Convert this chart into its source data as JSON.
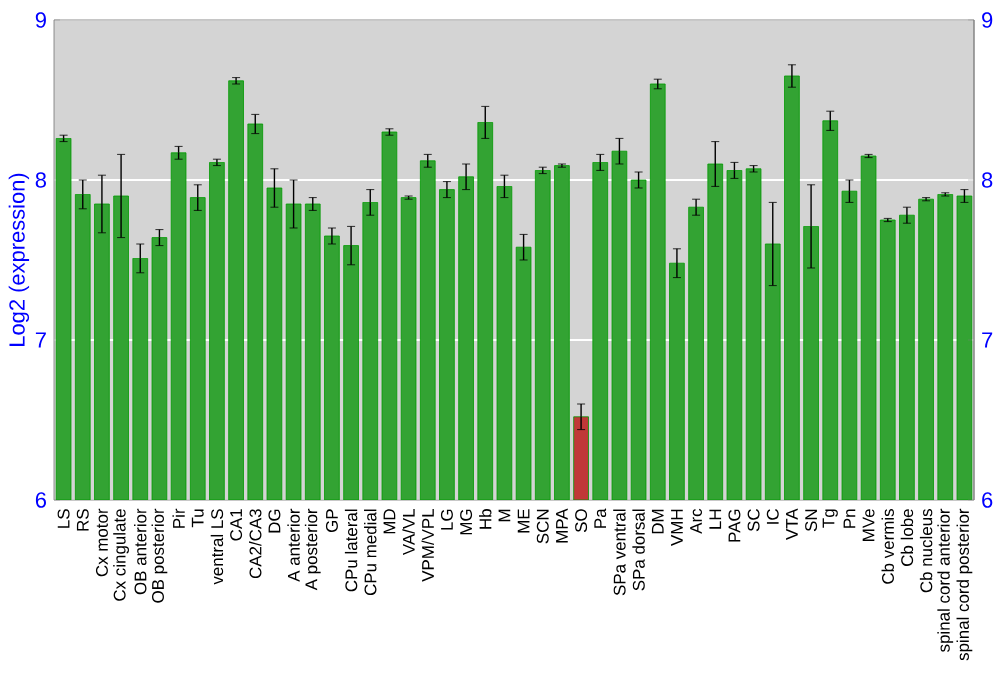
{
  "chart_data": {
    "type": "bar",
    "ylabel": "Log2 (expression)",
    "categories": [
      "LS",
      "RS",
      "Cx motor",
      "Cx cingulate",
      "OB anterior",
      "OB posterior",
      "Pir",
      "Tu",
      "ventral LS",
      "CA1",
      "CA2/CA3",
      "DG",
      "A anterior",
      "A posterior",
      "GP",
      "CPu lateral",
      "CPu medial",
      "MD",
      "VA/VL",
      "VPM/VPL",
      "LG",
      "MG",
      "Hb",
      "M",
      "ME",
      "SCN",
      "MPA",
      "SO",
      "Pa",
      "SPa ventral",
      "SPa dorsal",
      "DM",
      "VMH",
      "Arc",
      "LH",
      "PAG",
      "SC",
      "IC",
      "VTA",
      "SN",
      "Tg",
      "Pn",
      "MVe",
      "Cb vermis",
      "Cb lobe",
      "Cb nucleus",
      "spinal cord anterior",
      "spinal cord posterior"
    ],
    "values": [
      8.26,
      7.91,
      7.85,
      7.9,
      7.51,
      7.64,
      8.17,
      7.89,
      8.11,
      8.62,
      8.35,
      7.95,
      7.85,
      7.85,
      7.65,
      7.59,
      7.86,
      8.3,
      7.89,
      8.12,
      7.94,
      8.02,
      8.36,
      7.96,
      7.58,
      8.06,
      8.09,
      6.52,
      8.11,
      8.18,
      8.0,
      8.6,
      7.48,
      7.83,
      8.1,
      8.06,
      8.07,
      7.6,
      8.65,
      7.71,
      8.37,
      7.93,
      8.15,
      7.75,
      7.78,
      7.88,
      7.91,
      7.9
    ],
    "errors": [
      0.02,
      0.09,
      0.18,
      0.26,
      0.09,
      0.05,
      0.04,
      0.08,
      0.02,
      0.02,
      0.06,
      0.12,
      0.15,
      0.04,
      0.05,
      0.12,
      0.08,
      0.02,
      0.01,
      0.04,
      0.05,
      0.08,
      0.1,
      0.07,
      0.08,
      0.02,
      0.01,
      0.08,
      0.05,
      0.08,
      0.05,
      0.03,
      0.09,
      0.05,
      0.14,
      0.05,
      0.02,
      0.26,
      0.07,
      0.26,
      0.06,
      0.07,
      0.01,
      0.01,
      0.05,
      0.01,
      0.01,
      0.04
    ],
    "colors": [
      "#33a333",
      "#33a333",
      "#33a333",
      "#33a333",
      "#33a333",
      "#33a333",
      "#33a333",
      "#33a333",
      "#33a333",
      "#33a333",
      "#33a333",
      "#33a333",
      "#33a333",
      "#33a333",
      "#33a333",
      "#33a333",
      "#33a333",
      "#33a333",
      "#33a333",
      "#33a333",
      "#33a333",
      "#33a333",
      "#33a333",
      "#33a333",
      "#33a333",
      "#33a333",
      "#33a333",
      "#c03838",
      "#33a333",
      "#33a333",
      "#33a333",
      "#33a333",
      "#33a333",
      "#33a333",
      "#33a333",
      "#33a333",
      "#33a333",
      "#33a333",
      "#33a333",
      "#33a333",
      "#33a333",
      "#33a333",
      "#33a333",
      "#33a333",
      "#33a333",
      "#33a333",
      "#33a333",
      "#33a333"
    ],
    "ylim": [
      6,
      9
    ],
    "yticks": [
      6,
      7,
      8,
      9
    ],
    "y2lim": [
      6,
      9
    ],
    "y2ticks": [
      6,
      7,
      8,
      9
    ],
    "grid": "y"
  }
}
